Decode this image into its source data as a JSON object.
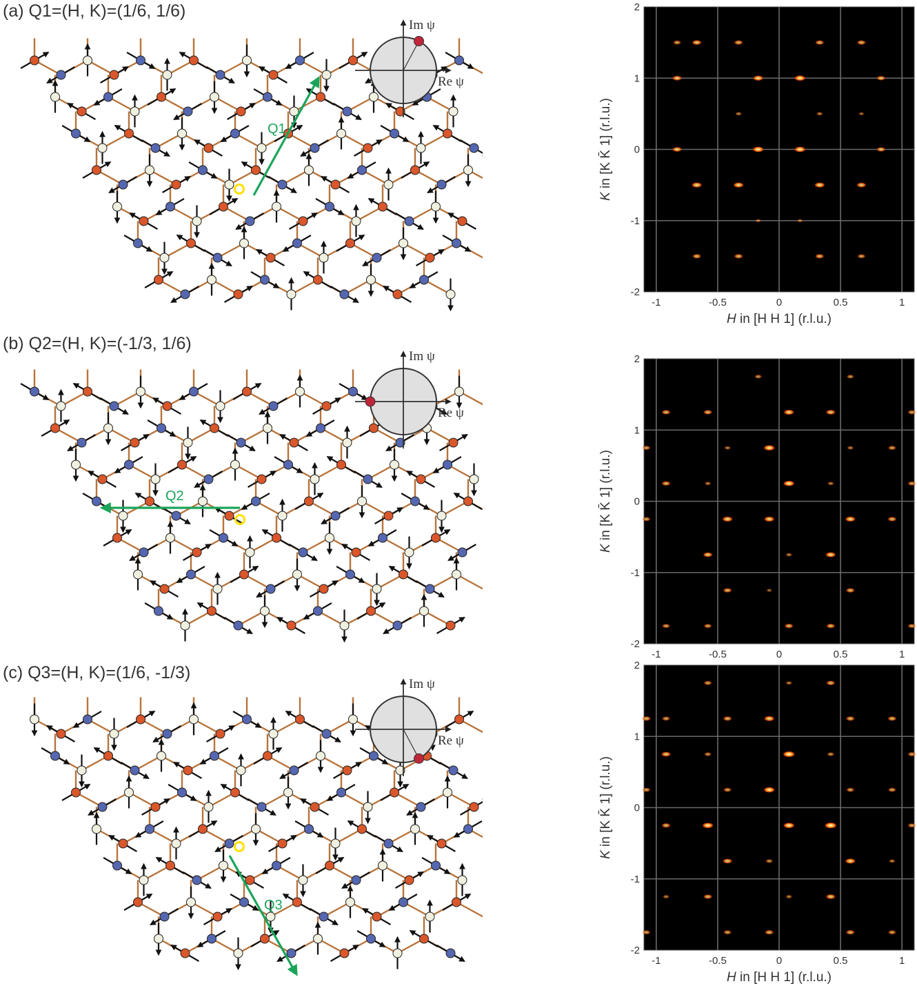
{
  "panels": [
    {
      "id": "a",
      "title": "(a) Q1=(H, K)=(1/6, 1/6)",
      "vector_label": "Q1",
      "psi_phase_deg": 62,
      "show_x_axis_label": true,
      "peaks": [
        [
          -0.83,
          1.5,
          0.5
        ],
        [
          -0.67,
          1.5,
          0.7
        ],
        [
          -0.33,
          1.5,
          0.6
        ],
        [
          0.33,
          1.5,
          0.6
        ],
        [
          0.67,
          1.5,
          0.6
        ],
        [
          -0.83,
          1.0,
          0.7
        ],
        [
          -0.17,
          1.0,
          0.8
        ],
        [
          0.17,
          1.0,
          0.9
        ],
        [
          0.83,
          1.0,
          0.6
        ],
        [
          -0.33,
          0.5,
          0.3
        ],
        [
          0.33,
          0.5,
          0.3
        ],
        [
          0.67,
          0.5,
          0.2
        ],
        [
          -0.83,
          0.0,
          0.7
        ],
        [
          -0.17,
          0.0,
          0.9
        ],
        [
          0.17,
          0.0,
          0.9
        ],
        [
          0.83,
          0.0,
          0.6
        ],
        [
          -0.67,
          -0.5,
          0.8
        ],
        [
          -0.33,
          -0.5,
          0.8
        ],
        [
          0.33,
          -0.5,
          0.8
        ],
        [
          0.67,
          -0.5,
          0.7
        ],
        [
          -0.17,
          -1.0,
          0.2
        ],
        [
          0.17,
          -1.0,
          0.2
        ],
        [
          -0.67,
          -1.5,
          0.6
        ],
        [
          -0.33,
          -1.5,
          0.6
        ],
        [
          0.33,
          -1.5,
          0.6
        ],
        [
          0.67,
          -1.5,
          0.5
        ]
      ]
    },
    {
      "id": "b",
      "title": "(b) Q2=(H, K)=(-1/3, 1/6)",
      "vector_label": "Q2",
      "psi_phase_deg": 180,
      "show_x_axis_label": false,
      "peaks": [
        [
          -0.17,
          1.75,
          0.4
        ],
        [
          0.58,
          1.75,
          0.4
        ],
        [
          -0.92,
          1.25,
          0.6
        ],
        [
          -0.58,
          1.25,
          0.6
        ],
        [
          0.08,
          1.25,
          0.8
        ],
        [
          0.42,
          1.25,
          0.7
        ],
        [
          1.08,
          1.25,
          0.5
        ],
        [
          -1.08,
          0.75,
          0.5
        ],
        [
          -0.42,
          0.75,
          0.3
        ],
        [
          -0.08,
          0.75,
          0.9
        ],
        [
          0.58,
          0.75,
          0.3
        ],
        [
          0.92,
          0.75,
          0.5
        ],
        [
          -0.92,
          0.25,
          0.6
        ],
        [
          -0.58,
          0.25,
          0.3
        ],
        [
          0.08,
          0.25,
          0.9
        ],
        [
          0.42,
          0.25,
          0.3
        ],
        [
          1.08,
          0.25,
          0.5
        ],
        [
          -1.08,
          -0.25,
          0.5
        ],
        [
          -0.42,
          -0.25,
          0.8
        ],
        [
          -0.08,
          -0.25,
          0.8
        ],
        [
          0.58,
          -0.25,
          0.8
        ],
        [
          0.92,
          -0.25,
          0.6
        ],
        [
          -0.58,
          -0.75,
          0.7
        ],
        [
          0.08,
          -0.75,
          0.3
        ],
        [
          0.42,
          -0.75,
          0.8
        ],
        [
          -0.42,
          -1.25,
          0.6
        ],
        [
          -0.08,
          -1.25,
          0.2
        ],
        [
          0.58,
          -1.25,
          0.6
        ],
        [
          -0.92,
          -1.75,
          0.5
        ],
        [
          -0.58,
          -1.75,
          0.5
        ],
        [
          0.08,
          -1.75,
          0.6
        ],
        [
          0.42,
          -1.75,
          0.6
        ],
        [
          1.08,
          -1.75,
          0.5
        ]
      ]
    },
    {
      "id": "c",
      "title": "(c) Q3=(H, K)=(1/6, -1/3)",
      "vector_label": "Q3",
      "psi_phase_deg": -62,
      "show_x_axis_label": true,
      "peaks": [
        [
          -0.58,
          1.75,
          0.5
        ],
        [
          0.08,
          1.75,
          0.3
        ],
        [
          0.42,
          1.75,
          0.6
        ],
        [
          -1.08,
          1.25,
          0.6
        ],
        [
          -0.92,
          1.25,
          0.5
        ],
        [
          -0.42,
          1.25,
          0.6
        ],
        [
          -0.08,
          1.25,
          0.8
        ],
        [
          0.58,
          1.25,
          0.6
        ],
        [
          0.92,
          1.25,
          0.6
        ],
        [
          -0.92,
          0.75,
          0.7
        ],
        [
          -0.58,
          0.75,
          0.4
        ],
        [
          0.08,
          0.75,
          1.0
        ],
        [
          0.42,
          0.75,
          0.4
        ],
        [
          1.08,
          0.75,
          0.5
        ],
        [
          -1.08,
          0.25,
          0.5
        ],
        [
          -0.42,
          0.25,
          0.5
        ],
        [
          -0.08,
          0.25,
          0.9
        ],
        [
          0.58,
          0.25,
          0.5
        ],
        [
          0.92,
          0.25,
          0.5
        ],
        [
          -0.92,
          -0.25,
          0.6
        ],
        [
          -0.58,
          -0.25,
          0.9
        ],
        [
          0.08,
          -0.25,
          0.9
        ],
        [
          0.42,
          -0.25,
          1.0
        ],
        [
          1.08,
          -0.25,
          0.5
        ],
        [
          -0.42,
          -0.75,
          0.7
        ],
        [
          -0.08,
          -0.75,
          0.4
        ],
        [
          0.58,
          -0.75,
          0.8
        ],
        [
          0.92,
          -0.75,
          0.3
        ],
        [
          -0.92,
          -1.25,
          0.3
        ],
        [
          -0.58,
          -1.25,
          0.6
        ],
        [
          0.08,
          -1.25,
          0.3
        ],
        [
          0.42,
          -1.25,
          0.7
        ],
        [
          -1.08,
          -1.75,
          0.5
        ],
        [
          -0.42,
          -1.75,
          0.5
        ],
        [
          -0.08,
          -1.75,
          0.6
        ],
        [
          0.58,
          -1.75,
          0.6
        ],
        [
          0.92,
          -1.75,
          0.5
        ]
      ]
    }
  ],
  "psi_labels": {
    "im": "Im ψ",
    "re": "Re ψ"
  },
  "chart_data": {
    "type": "heatmap",
    "xlabel_italic": "H",
    "xlabel_rest": " in [H H 1] (r.l.u.)",
    "ylabel_italic": "K",
    "ylabel_rest": " in [K K̄ 1] (r.l.u.)",
    "xlim": [
      -1.1,
      1.1
    ],
    "ylim": [
      -2,
      2
    ],
    "x_ticks": [
      "-1",
      "-0.5",
      "0",
      "0.5",
      "1"
    ],
    "y_ticks": [
      "2",
      "1",
      "0",
      "-1",
      "-2"
    ],
    "grid": true
  },
  "colors": {
    "bond": "#b8733a",
    "spin_red": "#d9572b",
    "spin_blue": "#5567b0",
    "spin_white": "#f0f0e0",
    "vector": "#1aa55a",
    "highlight": "#ffe000",
    "psi_disk": "#e0e0e0",
    "psi_dot": "#c0263a",
    "plot_bg": "#000000"
  }
}
